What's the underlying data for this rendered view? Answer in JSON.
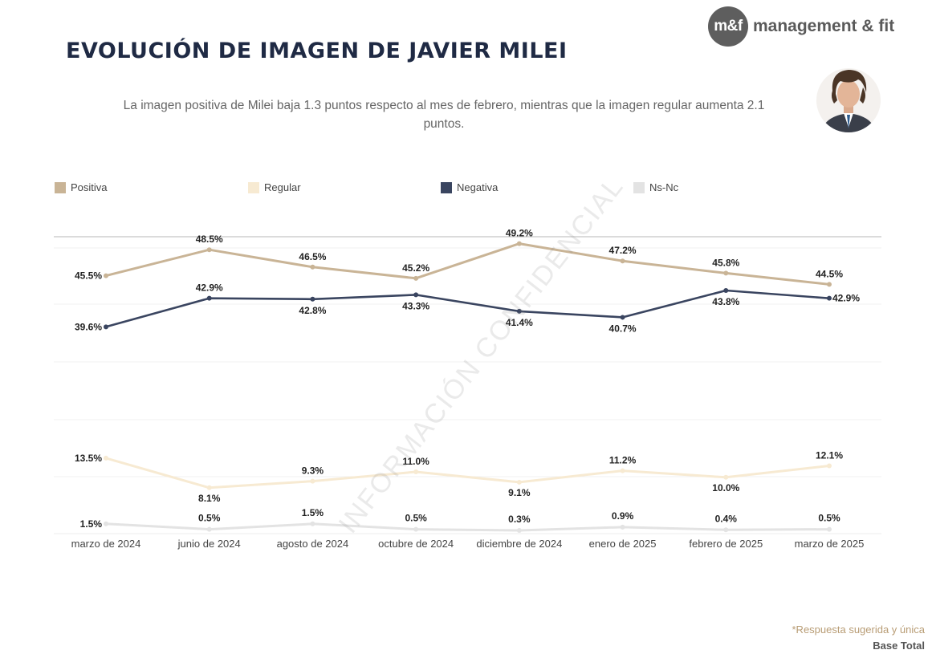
{
  "brand": {
    "logo_mark": "m&f",
    "name": "management & fit"
  },
  "title": "EVOLUCIÓN DE IMAGEN DE JAVIER MILEI",
  "subtitle": "La imagen positiva de Milei baja 1.3 puntos respecto al mes de febrero, mientras que la imagen regular aumenta 2.1 puntos.",
  "watermark": "INFORMACIÓN CONFIDENCIAL",
  "footnote": "*Respuesta sugerida y única",
  "base": "Base Total",
  "chart_data": {
    "type": "line",
    "title": "EVOLUCIÓN DE IMAGEN DE JAVIER MILEI",
    "categories": [
      "marzo de 2024",
      "junio de 2024",
      "agosto de 2024",
      "octubre de 2024",
      "diciembre de 2024",
      "enero de 2025",
      "febrero de 2025",
      "marzo de 2025"
    ],
    "series": [
      {
        "name": "Positiva",
        "color": "#c9b496",
        "values": [
          45.5,
          48.5,
          46.5,
          45.2,
          49.2,
          47.2,
          45.8,
          44.5
        ],
        "labels": [
          "45.5%",
          "48.5%",
          "46.5%",
          "45.2%",
          "49.2%",
          "47.2%",
          "45.8%",
          "44.5%"
        ]
      },
      {
        "name": "Regular",
        "color": "#f7ead2",
        "values": [
          13.5,
          8.1,
          9.3,
          11.0,
          9.1,
          11.2,
          10.0,
          12.1
        ],
        "labels": [
          "13.5%",
          "8.1%",
          "9.3%",
          "11.0%",
          "9.1%",
          "11.2%",
          "10.0%",
          "12.1%"
        ]
      },
      {
        "name": "Negativa",
        "color": "#3a4560",
        "values": [
          39.6,
          42.9,
          42.8,
          43.3,
          41.4,
          40.7,
          43.8,
          42.9
        ],
        "labels": [
          "39.6%",
          "42.9%",
          "42.8%",
          "43.3%",
          "41.4%",
          "40.7%",
          "43.8%",
          "42.9%"
        ]
      },
      {
        "name": "Ns-Nc",
        "color": "#e3e3e3",
        "values": [
          1.5,
          0.5,
          1.5,
          0.5,
          0.3,
          0.9,
          0.4,
          0.5
        ],
        "labels": [
          "1.5%",
          "0.5%",
          "1.5%",
          "0.5%",
          "0.3%",
          "0.9%",
          "0.4%",
          "0.5%"
        ]
      }
    ],
    "ylim": [
      0,
      55
    ],
    "xlabel": "",
    "ylabel": "",
    "legend": "top"
  }
}
